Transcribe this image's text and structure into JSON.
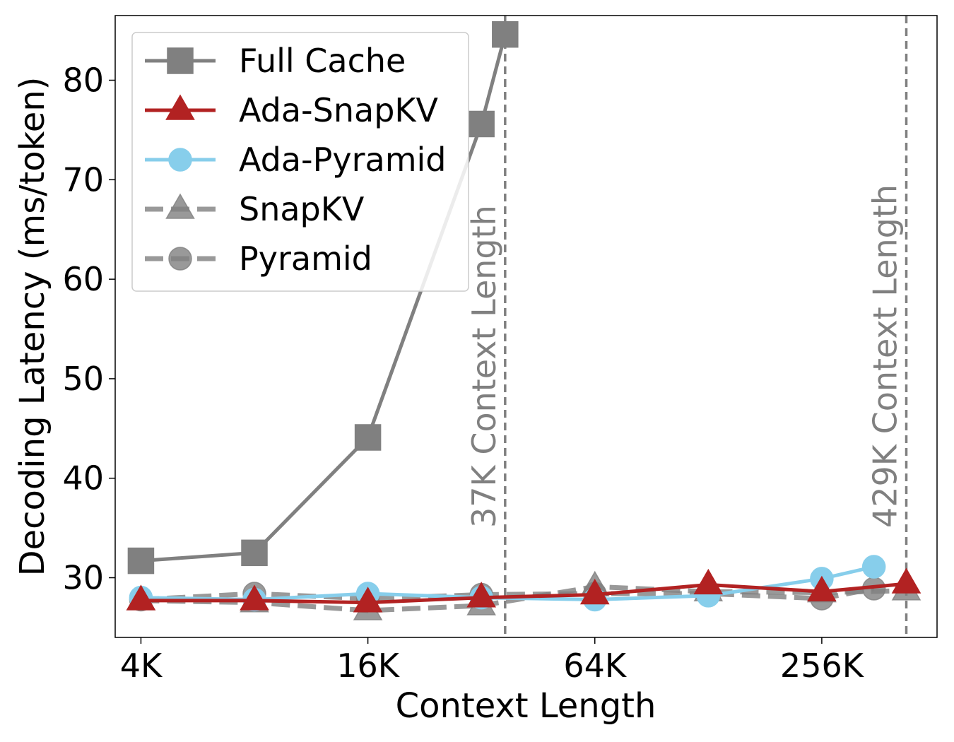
{
  "chart_data": {
    "type": "line",
    "title": "",
    "xlabel": "Context Length",
    "ylabel": "Decoding Latency (ms/token)",
    "x_scale": "log2",
    "x_ticks": [
      {
        "value": 4096,
        "label": "4K"
      },
      {
        "value": 16384,
        "label": "16K"
      },
      {
        "value": 65536,
        "label": "64K"
      },
      {
        "value": 262144,
        "label": "256K"
      }
    ],
    "y_ticks": [
      30,
      40,
      50,
      60,
      70,
      80
    ],
    "xlim": [
      3500,
      530000
    ],
    "ylim": [
      24.0,
      86.5
    ],
    "grid": false,
    "legend_position": "top-left",
    "reference_lines": [
      {
        "x": 37888,
        "label": "37K Context Length",
        "color": "#808080"
      },
      {
        "x": 439296,
        "label": "429K Context Length",
        "color": "#808080"
      }
    ],
    "series": [
      {
        "name": "Full Cache",
        "color": "#808080",
        "marker": "square",
        "dashed": false,
        "x": [
          4096,
          8192,
          16384,
          32768,
          37888
        ],
        "y": [
          31.7,
          32.5,
          44.1,
          75.6,
          84.6
        ]
      },
      {
        "name": "Ada-SnapKV",
        "color": "#b22222",
        "marker": "triangle",
        "dashed": false,
        "x": [
          4096,
          8192,
          16384,
          32768,
          65536,
          131072,
          262144,
          439296
        ],
        "y": [
          27.7,
          27.7,
          27.5,
          28.0,
          28.3,
          29.3,
          28.6,
          29.4
        ]
      },
      {
        "name": "Ada-Pyramid",
        "color": "#87ceeb",
        "marker": "circle",
        "dashed": false,
        "x": [
          4096,
          8192,
          16384,
          32768,
          65536,
          131072,
          262144,
          360448
        ],
        "y": [
          28.0,
          27.8,
          28.4,
          28.0,
          27.8,
          28.2,
          29.9,
          31.1
        ]
      },
      {
        "name": "SnapKV",
        "color": "#808080",
        "marker": "triangle",
        "dashed": true,
        "x": [
          4096,
          8192,
          16384,
          32768,
          65536,
          131072,
          262144,
          439296
        ],
        "y": [
          27.7,
          27.5,
          26.7,
          27.2,
          29.1,
          28.6,
          28.5,
          28.7
        ]
      },
      {
        "name": "Pyramid",
        "color": "#808080",
        "marker": "circle",
        "dashed": true,
        "x": [
          4096,
          8192,
          16384,
          32768,
          65536,
          131072,
          262144,
          360448
        ],
        "y": [
          27.8,
          28.4,
          27.9,
          28.3,
          28.4,
          28.4,
          27.9,
          28.9
        ]
      }
    ]
  }
}
